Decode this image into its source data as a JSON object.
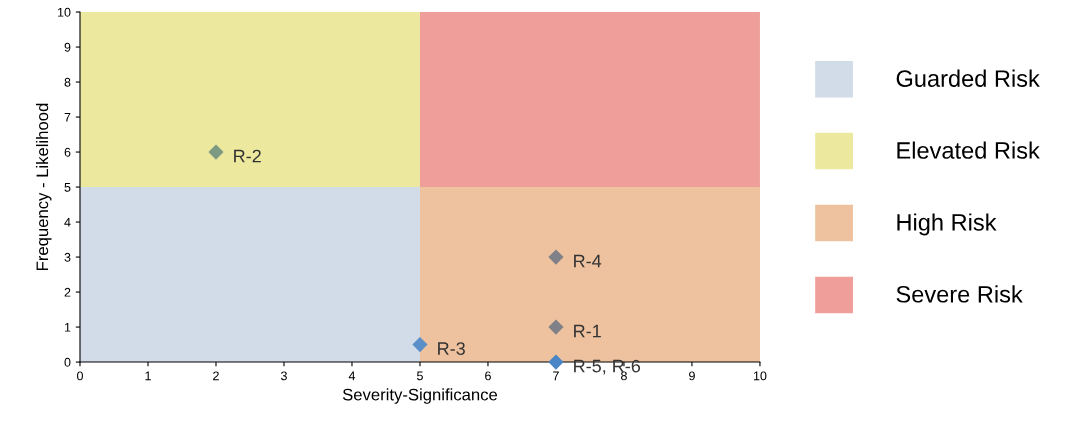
{
  "chart_data": {
    "type": "scatter",
    "xlabel": "Severity-Significance",
    "ylabel": "Frequency - Likelihood",
    "xlim": [
      0,
      10
    ],
    "ylim": [
      0,
      10
    ],
    "xticks": [
      0,
      1,
      2,
      3,
      4,
      5,
      6,
      7,
      8,
      9,
      10
    ],
    "yticks": [
      0,
      1,
      2,
      3,
      4,
      5,
      6,
      7,
      8,
      9,
      10
    ],
    "grid": false,
    "legend": "right",
    "series": [
      {
        "type": "area",
        "name": "Guarded Risk",
        "color": "#d1dce8",
        "x": [
          0,
          5
        ],
        "values": [
          5,
          5
        ]
      },
      {
        "type": "area",
        "name": "Elevated Risk",
        "color": "#ece99f",
        "x": [
          0,
          5
        ],
        "values": [
          10,
          10
        ]
      },
      {
        "type": "area",
        "name": "High Risk",
        "color": "#eec29e",
        "x": [
          5,
          10
        ],
        "values": [
          5,
          5
        ]
      },
      {
        "type": "area",
        "name": "Severe Risk",
        "color": "#ef9e9a",
        "x": [
          5,
          10
        ],
        "values": [
          10,
          10
        ]
      },
      {
        "marker": "diamond",
        "x": [
          2,
          7,
          7,
          5,
          7
        ],
        "values": [
          6,
          3,
          1,
          0.5,
          0
        ],
        "colors": [
          "#7f9a82",
          "#808088",
          "#808088",
          "#5a8fc8",
          "#4a85c6"
        ]
      }
    ],
    "annotations": [
      {
        "text": "R-2",
        "x": 2,
        "y": 6
      },
      {
        "text": "R-4",
        "x": 7,
        "y": 3
      },
      {
        "text": "R-1",
        "x": 7,
        "y": 1
      },
      {
        "text": "R-3",
        "x": 5,
        "y": 0.5
      },
      {
        "text": "R-5, R-6",
        "x": 7,
        "y": 0
      }
    ]
  }
}
